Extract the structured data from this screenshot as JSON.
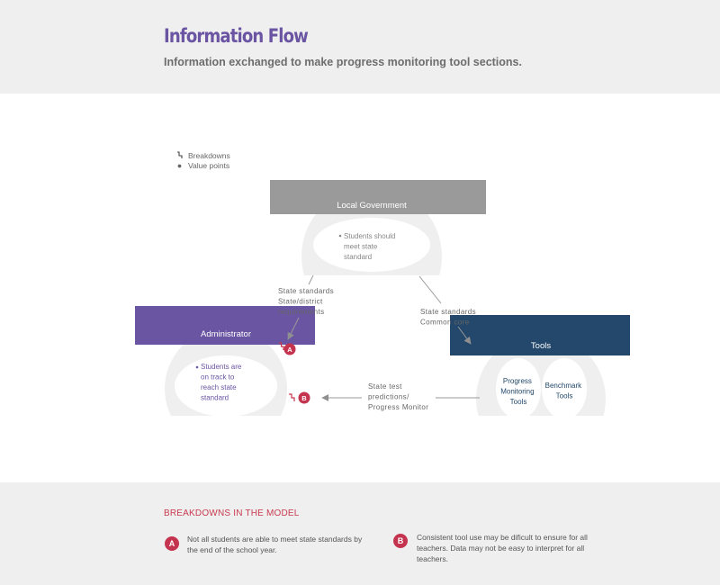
{
  "header": {
    "title": "Information Flow",
    "subtitle": "Information exchanged to make progress monitoring tool sections."
  },
  "legend": {
    "breakdowns": "Breakdowns",
    "value_points": "Value points"
  },
  "nodes": {
    "local_government": {
      "title": "Local Government",
      "value_lines": [
        "Students should",
        "meet state",
        "standard"
      ]
    },
    "administrator": {
      "title": "Administrator",
      "value_lines": [
        "Students are",
        "on track to",
        "reach state",
        "standard"
      ]
    },
    "tools": {
      "title": "Tools",
      "sub1_lines": [
        "Progress",
        "Monitoring",
        "Tools"
      ],
      "sub2_lines": [
        "Benchmark",
        "Tools"
      ]
    }
  },
  "flows": {
    "gov_to_admin": [
      "State standards",
      "State/district",
      "requirements"
    ],
    "gov_to_tools": [
      "State standards",
      "Common core"
    ],
    "tools_to_admin": [
      "State test",
      "predictions/",
      "Progress Monitor"
    ]
  },
  "markers": {
    "a": "A",
    "b": "B"
  },
  "breakdowns": {
    "heading": "BREAKDOWNS IN THE MODEL",
    "items": [
      {
        "badge": "A",
        "lines": [
          "Not all students are able to meet state standards by",
          "the end of the school year."
        ]
      },
      {
        "badge": "B",
        "lines": [
          "Consistent tool use may be dificult to ensure for all",
          "teachers. Data may not be easy to interpret for all",
          "teachers."
        ]
      }
    ]
  },
  "colors": {
    "gov": "#9a9a9a",
    "admin": "#6a55a3",
    "tools": "#23486b",
    "breakdown": "#c4344f",
    "ring": "#efefef"
  }
}
